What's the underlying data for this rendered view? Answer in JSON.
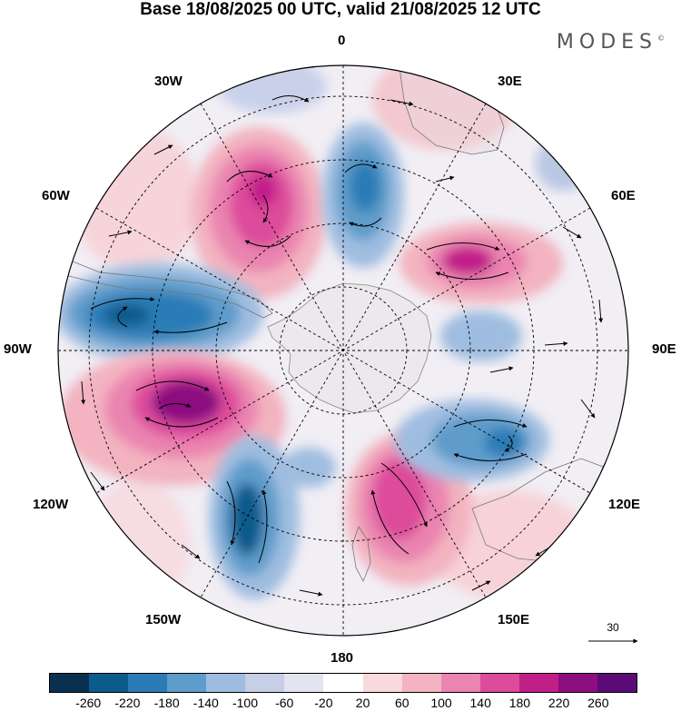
{
  "title": "Base 18/08/2025 00 UTC, valid 21/08/2025 12 UTC",
  "brand": "MODES",
  "brand_mark": "©",
  "map": {
    "projection": "south-polar-stereographic",
    "longitude_labels": {
      "top": "0",
      "top_left": "30W",
      "top_right": "30E",
      "upper_left": "60W",
      "upper_right": "60E",
      "left": "90W",
      "right": "90E",
      "lower_left": "120W",
      "lower_right": "120E",
      "bottom_left": "150W",
      "bottom_right": "150E",
      "bottom": "180"
    },
    "reference_vector_label": "30",
    "anomaly_centers": [
      {
        "name": "positive-60W",
        "sign": "positive",
        "peak": 220
      },
      {
        "name": "negative-0",
        "sign": "negative",
        "peak": -180
      },
      {
        "name": "positive-60E",
        "sign": "positive",
        "peak": 220
      },
      {
        "name": "negative-90W",
        "sign": "negative",
        "peak": -220
      },
      {
        "name": "positive-110W",
        "sign": "positive",
        "peak": 260
      },
      {
        "name": "negative-150W",
        "sign": "negative",
        "peak": -220
      },
      {
        "name": "positive-160E",
        "sign": "positive",
        "peak": 180
      },
      {
        "name": "negative-120E",
        "sign": "negative",
        "peak": -180
      },
      {
        "name": "negative-90E",
        "sign": "negative",
        "peak": -100
      }
    ]
  },
  "colorbar": {
    "colors": [
      "#0a3050",
      "#0d5a8c",
      "#2a7cb6",
      "#5e9ccb",
      "#9fbde0",
      "#c6cfe6",
      "#e4e3f0",
      "#ffffff",
      "#f8d9dc",
      "#f3b3c0",
      "#ea84b0",
      "#dd4b9b",
      "#c11f88",
      "#8c0e80",
      "#5a0b76"
    ],
    "tick_labels": [
      "-260",
      "-220",
      "-180",
      "-140",
      "-100",
      "-60",
      "-20",
      "20",
      "60",
      "100",
      "140",
      "180",
      "220",
      "260"
    ]
  }
}
